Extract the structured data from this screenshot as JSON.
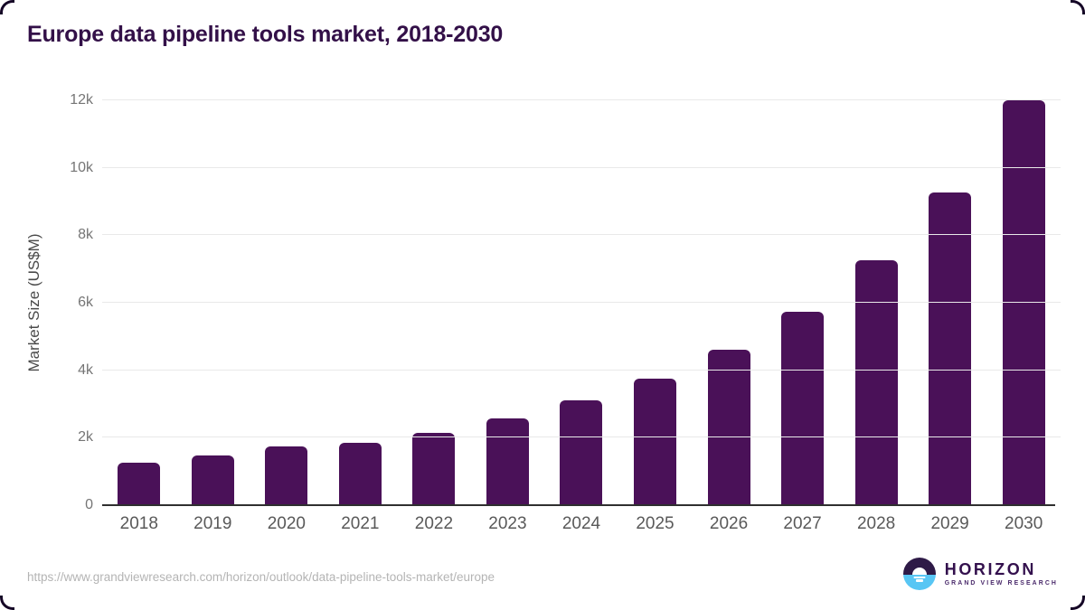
{
  "page": {
    "title": "Europe data pipeline tools market, 2018-2030"
  },
  "chart_data": {
    "type": "bar",
    "title": "Europe data pipeline tools market, 2018-2030",
    "categories": [
      "2018",
      "2019",
      "2020",
      "2021",
      "2022",
      "2023",
      "2024",
      "2025",
      "2026",
      "2027",
      "2028",
      "2029",
      "2030"
    ],
    "values": [
      1250,
      1480,
      1740,
      1850,
      2150,
      2570,
      3110,
      3750,
      4620,
      5740,
      7250,
      9260,
      12000
    ],
    "xlabel": "",
    "ylabel": "Market Size (US$M)",
    "ylim": [
      0,
      12000
    ],
    "yticks": [
      0,
      2000,
      4000,
      6000,
      8000,
      10000,
      12000
    ],
    "ytick_labels": [
      "0",
      "2k",
      "4k",
      "6k",
      "8k",
      "10k",
      "12k"
    ],
    "grid": true,
    "legend": false,
    "bar_color": "#4a1158"
  },
  "footer": {
    "source_url": "https://www.grandviewresearch.com/horizon/outlook/data-pipeline-tools-market/europe",
    "logo": {
      "brand": "HORIZON",
      "tagline": "GRAND VIEW RESEARCH"
    }
  },
  "colors": {
    "title_text": "#331048",
    "bar_fill": "#4a1158",
    "gridline": "#e9e9e9",
    "axis_line": "#2f2f2f",
    "y_tick_text": "#757575",
    "x_tick_text": "#595959",
    "url_text": "#b4b4b4",
    "logo_purple": "#2e1a47",
    "logo_blue": "#58c6f4"
  }
}
